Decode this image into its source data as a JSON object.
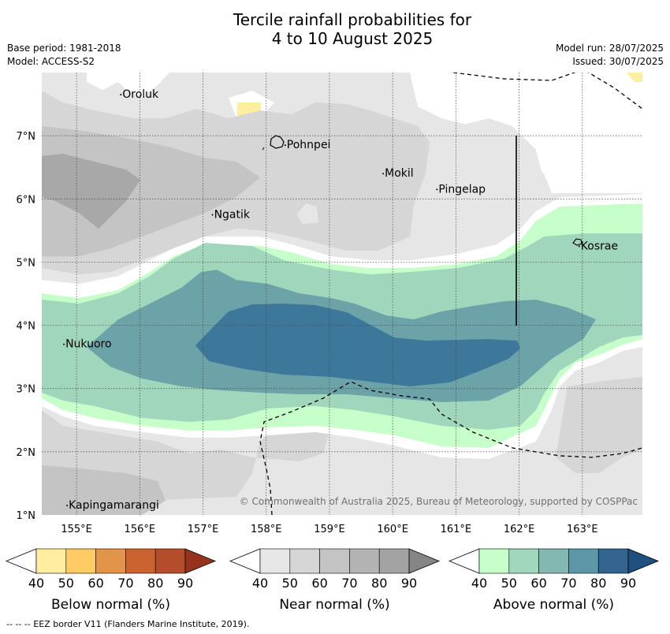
{
  "title_line1": "Tercile rainfall probabilities for",
  "title_line2": "4 to 10 August 2025",
  "meta_left": [
    "Base period: 1981-2018",
    "Model: ACCESS-S2"
  ],
  "meta_right": [
    "Model run: 28/07/2025",
    "Issued: 30/07/2025"
  ],
  "map": {
    "lon_range": [
      154.45,
      163.95
    ],
    "lat_range": [
      1.0,
      8.0
    ],
    "lon_ticks": [
      "155°E",
      "156°E",
      "157°E",
      "158°E",
      "159°E",
      "160°E",
      "161°E",
      "162°E",
      "163°E"
    ],
    "lat_ticks": [
      "1°N",
      "2°N",
      "3°N",
      "4°N",
      "5°N",
      "6°N",
      "7°N"
    ],
    "places": [
      {
        "name": "Oroluk",
        "lon": 155.7,
        "lat": 7.65
      },
      {
        "name": "Pohnpei",
        "lon": 158.3,
        "lat": 6.85
      },
      {
        "name": "Mokil",
        "lon": 159.85,
        "lat": 6.4
      },
      {
        "name": "Pingelap",
        "lon": 160.7,
        "lat": 6.15
      },
      {
        "name": "Ngatik",
        "lon": 157.15,
        "lat": 5.75
      },
      {
        "name": "Kosrae",
        "lon": 162.95,
        "lat": 5.25
      },
      {
        "name": "Nukuoro",
        "lon": 154.8,
        "lat": 3.7
      },
      {
        "name": "Kapingamarangi",
        "lon": 154.85,
        "lat": 1.15
      }
    ],
    "copyright": "© Commonwealth of Australia 2025, Bureau of Meteorology, supported by COSPPac"
  },
  "colorbars": [
    {
      "label": "Below normal (%)",
      "colors": [
        "#ffeea0",
        "#fecb65",
        "#e29448",
        "#cd6231",
        "#b44d29",
        "#97321f"
      ]
    },
    {
      "label": "Near normal (%)",
      "colors": [
        "#e6e6e6",
        "#d6d6d6",
        "#c4c4c4",
        "#b3b3b3",
        "#a3a3a3",
        "#858585"
      ]
    },
    {
      "label": "Above normal (%)",
      "colors": [
        "#c6ffc9",
        "#a0d6bb",
        "#83b7b1",
        "#5b97a6",
        "#32648f",
        "#1e4f7f"
      ]
    }
  ],
  "colorbar_ticks": [
    "40",
    "50",
    "60",
    "70",
    "80",
    "90"
  ],
  "footnote": "--  --  -- EEZ border V11 (Flanders Marine Institute, 2019)."
}
